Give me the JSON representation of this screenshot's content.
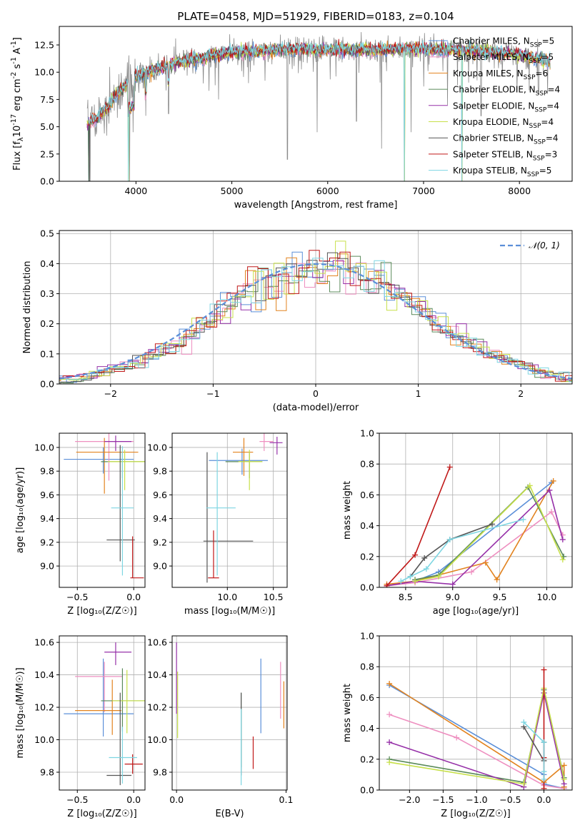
{
  "title": "PLATE=0458, MJD=51929, FIBERID=0183, z=0.104",
  "models": [
    {
      "name": "Chabrier MILES, N_{SSP}=5",
      "color": "#5b8fd8"
    },
    {
      "name": "Salpeter MILES, N_{SSP}=5",
      "color": "#ee8fc0"
    },
    {
      "name": "Kroupa MILES, N_{SSP}=6",
      "color": "#e2831f"
    },
    {
      "name": "Chabrier ELODIE, N_{SSP}=4",
      "color": "#5a8a5a"
    },
    {
      "name": "Salpeter ELODIE, N_{SSP}=4",
      "color": "#9630a8"
    },
    {
      "name": "Kroupa ELODIE, N_{SSP}=4",
      "color": "#c7e04a"
    },
    {
      "name": "Chabrier STELIB, N_{SSP}=4",
      "color": "#555555"
    },
    {
      "name": "Salpeter STELIB, N_{SSP}=3",
      "color": "#c01818"
    },
    {
      "name": "Kroupa STELIB, N_{SSP}=5",
      "color": "#7ed6e2"
    }
  ],
  "chart_data": [
    {
      "type": "line",
      "name": "spectrum",
      "xlabel": "wavelength [Angstrom, rest frame]",
      "ylabel": "Flux [f_λ10^{-17} erg cm^{-2} s^{-1} A^{-1}]",
      "xlim": [
        3200,
        8550
      ],
      "ylim": [
        0,
        14.2
      ],
      "xticks": [
        4000,
        5000,
        6000,
        7000,
        8000
      ],
      "yticks": [
        0.0,
        2.5,
        5.0,
        7.5,
        10.0,
        12.5
      ],
      "legend": "right",
      "continuum": [
        [
          3500,
          5.4
        ],
        [
          3600,
          5.8
        ],
        [
          3700,
          6.8
        ],
        [
          3800,
          8.0
        ],
        [
          3900,
          8.8
        ],
        [
          4000,
          9.6
        ],
        [
          4100,
          10.0
        ],
        [
          4200,
          10.3
        ],
        [
          4300,
          10.5
        ],
        [
          4400,
          10.8
        ],
        [
          4500,
          11.0
        ],
        [
          4600,
          11.2
        ],
        [
          4700,
          11.3
        ],
        [
          4800,
          11.5
        ],
        [
          5000,
          11.8
        ],
        [
          5200,
          11.9
        ],
        [
          5400,
          12.0
        ],
        [
          5600,
          12.1
        ],
        [
          5800,
          12.1
        ],
        [
          6000,
          12.0
        ],
        [
          6200,
          12.1
        ],
        [
          6500,
          12.0
        ],
        [
          6800,
          12.2
        ],
        [
          7000,
          12.1
        ],
        [
          7500,
          12.0
        ],
        [
          8000,
          11.6
        ],
        [
          8300,
          11.0
        ]
      ],
      "data_dips": [
        [
          3520,
          0.0
        ],
        [
          3935,
          0.0
        ],
        [
          3970,
          4.5
        ],
        [
          4102,
          6.0
        ],
        [
          4340,
          6.2
        ],
        [
          4862,
          7.5
        ],
        [
          5175,
          9.0
        ],
        [
          5580,
          2.0
        ],
        [
          5890,
          4.5
        ],
        [
          6300,
          5.5
        ],
        [
          6563,
          3.0
        ],
        [
          6800,
          0.0
        ],
        [
          6870,
          4.5
        ],
        [
          7250,
          7.0
        ],
        [
          7400,
          0.0
        ],
        [
          7600,
          6.0
        ],
        [
          8200,
          8.0
        ]
      ],
      "model_dips": [
        [
          3510,
          0.0
        ],
        [
          3920,
          0.0
        ],
        [
          6800,
          0.0
        ],
        [
          7400,
          0.0
        ]
      ]
    },
    {
      "type": "step",
      "name": "residuals",
      "xlabel": "(data-model)/error",
      "ylabel": "Normed distribution",
      "xlim": [
        -2.5,
        2.5
      ],
      "ylim": [
        0,
        0.51
      ],
      "xticks": [
        -2,
        -1,
        0,
        1,
        2
      ],
      "yticks": [
        0.0,
        0.1,
        0.2,
        0.3,
        0.4,
        0.5
      ],
      "bin_width": 0.1,
      "legend_label": "𝒩(0, 1)",
      "legend": "top-right"
    },
    {
      "type": "errorbar",
      "name": "age-vs-Z",
      "xlabel": "Z [log₁₀(Z/Z☉)]",
      "ylabel": "age  [log₁₀(age/yr)]",
      "xlim": [
        -0.66,
        0.1
      ],
      "ylim": [
        8.82,
        10.12
      ],
      "xticks": [
        -0.5,
        0.0
      ],
      "yticks": [
        9.0,
        9.2,
        9.4,
        9.6,
        9.8,
        10.0
      ],
      "points": [
        {
          "x": -0.27,
          "y": 9.9,
          "xerr": [
            0.35,
            0.27
          ],
          "yerr": [
            0.12,
            0.1
          ]
        },
        {
          "x": -0.22,
          "y": 10.05,
          "xerr": [
            0.3,
            0.22
          ],
          "yerr": [
            0.33,
            0.1
          ]
        },
        {
          "x": -0.26,
          "y": 9.96,
          "xerr": [
            0.25,
            0.3
          ],
          "yerr": [
            0.35,
            0.12
          ]
        },
        {
          "x": -0.1,
          "y": 9.88,
          "xerr": [
            0.19,
            0.2
          ],
          "yerr": [
            0.14,
            0.08
          ]
        },
        {
          "x": -0.16,
          "y": 10.05,
          "xerr": [
            0.1,
            0.14
          ],
          "yerr": [
            0.08,
            0.05
          ]
        },
        {
          "x": -0.08,
          "y": 9.88,
          "xerr": [
            0.15,
            0.2
          ],
          "yerr": [
            0.24,
            0.1
          ]
        },
        {
          "x": -0.12,
          "y": 9.22,
          "xerr": [
            0.12,
            0.13
          ],
          "yerr": [
            0.18,
            0.8
          ]
        },
        {
          "x": -0.01,
          "y": 8.9,
          "xerr": [
            0.02,
            0.1
          ],
          "yerr": [
            0.0,
            0.35
          ]
        },
        {
          "x": -0.1,
          "y": 9.49,
          "xerr": [
            0.1,
            0.1
          ],
          "yerr": [
            0.57,
            0.52
          ]
        }
      ]
    },
    {
      "type": "errorbar",
      "name": "age-vs-mass",
      "xlabel": "mass [log₁₀(M/M☉)]",
      "ylabel": "",
      "xlim": [
        9.4,
        10.65
      ],
      "ylim": [
        8.82,
        10.12
      ],
      "xticks": [
        10.0,
        10.5
      ],
      "yticks": [
        9.0,
        9.2,
        9.4,
        9.6,
        9.8,
        10.0
      ],
      "points": [
        {
          "x": 10.16,
          "y": 9.89,
          "xerr": [
            0.36,
            0.28
          ],
          "yerr": [
            0.12,
            0.1
          ]
        },
        {
          "x": 10.4,
          "y": 10.05,
          "xerr": [
            0.05,
            0.1
          ],
          "yerr": [
            0.08,
            0.07
          ]
        },
        {
          "x": 10.18,
          "y": 9.96,
          "xerr": [
            0.12,
            0.1
          ],
          "yerr": [
            0.2,
            0.12
          ]
        },
        {
          "x": 10.24,
          "y": 9.88,
          "xerr": [
            0.26,
            0.14
          ],
          "yerr": [
            0.14,
            0.08
          ]
        },
        {
          "x": 10.54,
          "y": 10.04,
          "xerr": [
            0.08,
            0.06
          ],
          "yerr": [
            0.1,
            0.05
          ]
        },
        {
          "x": 10.24,
          "y": 9.88,
          "xerr": [
            0.12,
            0.14
          ],
          "yerr": [
            0.24,
            0.1
          ]
        },
        {
          "x": 9.78,
          "y": 9.21,
          "xerr": [
            0.04,
            0.5
          ],
          "yerr": [
            0.35,
            0.75
          ]
        },
        {
          "x": 9.85,
          "y": 8.9,
          "xerr": [
            0.06,
            0.06
          ],
          "yerr": [
            0.0,
            0.4
          ]
        },
        {
          "x": 9.89,
          "y": 9.49,
          "xerr": [
            0.12,
            0.2
          ],
          "yerr": [
            0.57,
            0.47
          ]
        }
      ]
    },
    {
      "type": "line",
      "name": "weight-vs-age",
      "xlabel": "age  [log₁₀(age/yr)]",
      "ylabel": "mass weight",
      "xlim": [
        8.22,
        10.27
      ],
      "ylim": [
        0,
        1.0
      ],
      "xticks": [
        8.5,
        9.0,
        9.5,
        10.0
      ],
      "yticks": [
        0.0,
        0.2,
        0.4,
        0.6,
        0.8,
        1.0
      ],
      "series": [
        {
          "x": [
            8.3,
            8.6,
            8.85,
            10.05
          ],
          "y": [
            0.01,
            0.04,
            0.1,
            0.68
          ]
        },
        {
          "x": [
            8.3,
            8.6,
            9.2,
            10.05,
            10.17
          ],
          "y": [
            0.01,
            0.03,
            0.1,
            0.49,
            0.34
          ]
        },
        {
          "x": [
            8.3,
            8.6,
            9.35,
            9.47,
            10.07
          ],
          "y": [
            0.02,
            0.04,
            0.16,
            0.05,
            0.69
          ]
        },
        {
          "x": [
            8.6,
            8.85,
            9.8,
            10.18
          ],
          "y": [
            0.05,
            0.08,
            0.65,
            0.2
          ]
        },
        {
          "x": [
            8.3,
            8.6,
            9.0,
            10.03,
            10.17
          ],
          "y": [
            0.01,
            0.04,
            0.02,
            0.63,
            0.31
          ]
        },
        {
          "x": [
            8.6,
            8.85,
            9.82,
            10.17
          ],
          "y": [
            0.04,
            0.07,
            0.66,
            0.18
          ]
        },
        {
          "x": [
            8.55,
            8.7,
            8.97,
            9.42
          ],
          "y": [
            0.07,
            0.19,
            0.31,
            0.41
          ]
        },
        {
          "x": [
            8.3,
            8.6,
            8.97
          ],
          "y": [
            0.01,
            0.21,
            0.78
          ]
        },
        {
          "x": [
            8.45,
            8.55,
            8.72,
            8.97,
            9.75
          ],
          "y": [
            0.04,
            0.07,
            0.12,
            0.31,
            0.44
          ]
        }
      ]
    },
    {
      "type": "errorbar",
      "name": "mass-vs-Z",
      "xlabel": "Z [log₁₀(Z/Z☉)]",
      "ylabel": "mass [log₁₀(M/M☉)]",
      "xlim": [
        -0.66,
        0.1
      ],
      "ylim": [
        9.69,
        10.64
      ],
      "xticks": [
        -0.5,
        0.0
      ],
      "yticks": [
        9.8,
        10.0,
        10.2,
        10.4,
        10.6
      ],
      "points": [
        {
          "x": -0.27,
          "y": 10.16,
          "xerr": [
            0.35,
            0.27
          ],
          "yerr": [
            0.14,
            0.34
          ]
        },
        {
          "x": -0.26,
          "y": 10.39,
          "xerr": [
            0.26,
            0.16
          ],
          "yerr": [
            0.22,
            0.09
          ]
        },
        {
          "x": -0.19,
          "y": 10.18,
          "xerr": [
            0.33,
            0.08
          ],
          "yerr": [
            0.15,
            0.19
          ]
        },
        {
          "x": -0.1,
          "y": 10.24,
          "xerr": [
            0.19,
            0.2
          ],
          "yerr": [
            0.19,
            0.2
          ]
        },
        {
          "x": -0.16,
          "y": 10.54,
          "xerr": [
            0.1,
            0.14
          ],
          "yerr": [
            0.08,
            0.06
          ]
        },
        {
          "x": -0.06,
          "y": 10.24,
          "xerr": [
            0.13,
            0.16
          ],
          "yerr": [
            0.2,
            0.19
          ]
        },
        {
          "x": -0.12,
          "y": 9.78,
          "xerr": [
            0.12,
            0.1
          ],
          "yerr": [
            0.06,
            0.51
          ]
        },
        {
          "x": -0.01,
          "y": 9.85,
          "xerr": [
            0.07,
            0.09
          ],
          "yerr": [
            0.06,
            0.06
          ]
        },
        {
          "x": -0.1,
          "y": 9.89,
          "xerr": [
            0.12,
            0.13
          ],
          "yerr": [
            0.16,
            0.19
          ]
        }
      ]
    },
    {
      "type": "errorbar",
      "name": "mass-vs-EBV",
      "xlabel": "E(B-V)",
      "ylabel": "",
      "xlim": [
        -0.004,
        0.101
      ],
      "ylim": [
        9.69,
        10.64
      ],
      "xticks": [
        0.0,
        0.1
      ],
      "yticks": [
        9.8,
        10.0,
        10.2,
        10.4,
        10.6
      ],
      "points": [
        {
          "x": 0.077,
          "y": 10.27,
          "xerr": [
            0,
            0
          ],
          "yerr": [
            0.23,
            0.23
          ]
        },
        {
          "x": 0.095,
          "y": 10.3,
          "xerr": [
            0,
            0
          ],
          "yerr": [
            0.17,
            0.18
          ]
        },
        {
          "x": 0.098,
          "y": 10.21,
          "xerr": [
            0,
            0
          ],
          "yerr": [
            0.14,
            0.15
          ]
        },
        {
          "x": 0.059,
          "y": 10.05,
          "xerr": [
            0,
            0
          ],
          "yerr": [
            0.22,
            0.24
          ]
        },
        {
          "x": 0.0,
          "y": 10.38,
          "xerr": [
            0,
            0
          ],
          "yerr": [
            0.22,
            0.22
          ]
        },
        {
          "x": 0.001,
          "y": 10.21,
          "xerr": [
            0,
            0
          ],
          "yerr": [
            0.2,
            0.21
          ]
        },
        {
          "x": 0.059,
          "y": 10.09,
          "xerr": [
            0,
            0
          ],
          "yerr": [
            0.31,
            0.2
          ]
        },
        {
          "x": 0.07,
          "y": 9.92,
          "xerr": [
            0,
            0
          ],
          "yerr": [
            0.1,
            0.1
          ]
        },
        {
          "x": 0.059,
          "y": 9.94,
          "xerr": [
            0,
            0
          ],
          "yerr": [
            0.22,
            0.25
          ]
        }
      ]
    },
    {
      "type": "line",
      "name": "weight-vs-Z",
      "xlabel": "Z [log₁₀(Z/Z☉)]",
      "ylabel": "mass weight",
      "xlim": [
        -2.45,
        0.42
      ],
      "ylim": [
        0,
        1.0
      ],
      "xticks": [
        -2.0,
        -1.5,
        -1.0,
        -0.5,
        0.0
      ],
      "yticks": [
        0.0,
        0.2,
        0.4,
        0.6,
        0.8,
        1.0
      ],
      "series": [
        {
          "x": [
            -2.3,
            0.0,
            0.0,
            0.3
          ],
          "y": [
            0.68,
            0.1,
            0.04,
            0.01
          ]
        },
        {
          "x": [
            -2.3,
            -1.3,
            0.0,
            0.3
          ],
          "y": [
            0.49,
            0.34,
            0.03,
            0.01
          ]
        },
        {
          "x": [
            -2.3,
            0.0,
            0.3,
            0.3
          ],
          "y": [
            0.69,
            0.05,
            0.16,
            0.02
          ]
        },
        {
          "x": [
            -2.3,
            -0.3,
            0.0,
            0.3
          ],
          "y": [
            0.2,
            0.05,
            0.65,
            0.08
          ]
        },
        {
          "x": [
            -2.3,
            -0.3,
            0.0,
            0.3
          ],
          "y": [
            0.31,
            0.02,
            0.63,
            0.04
          ]
        },
        {
          "x": [
            -2.3,
            -0.3,
            0.0,
            0.3
          ],
          "y": [
            0.18,
            0.04,
            0.66,
            0.07
          ]
        },
        {
          "x": [
            -0.3,
            0.0,
            0.0
          ],
          "y": [
            0.41,
            0.19,
            0.31
          ]
        },
        {
          "x": [
            0.0,
            0.0,
            0.0
          ],
          "y": [
            0.01,
            0.21,
            0.78
          ]
        },
        {
          "x": [
            -0.3,
            0.0,
            0.0,
            0.0
          ],
          "y": [
            0.44,
            0.31,
            0.12,
            0.07
          ]
        }
      ]
    }
  ]
}
